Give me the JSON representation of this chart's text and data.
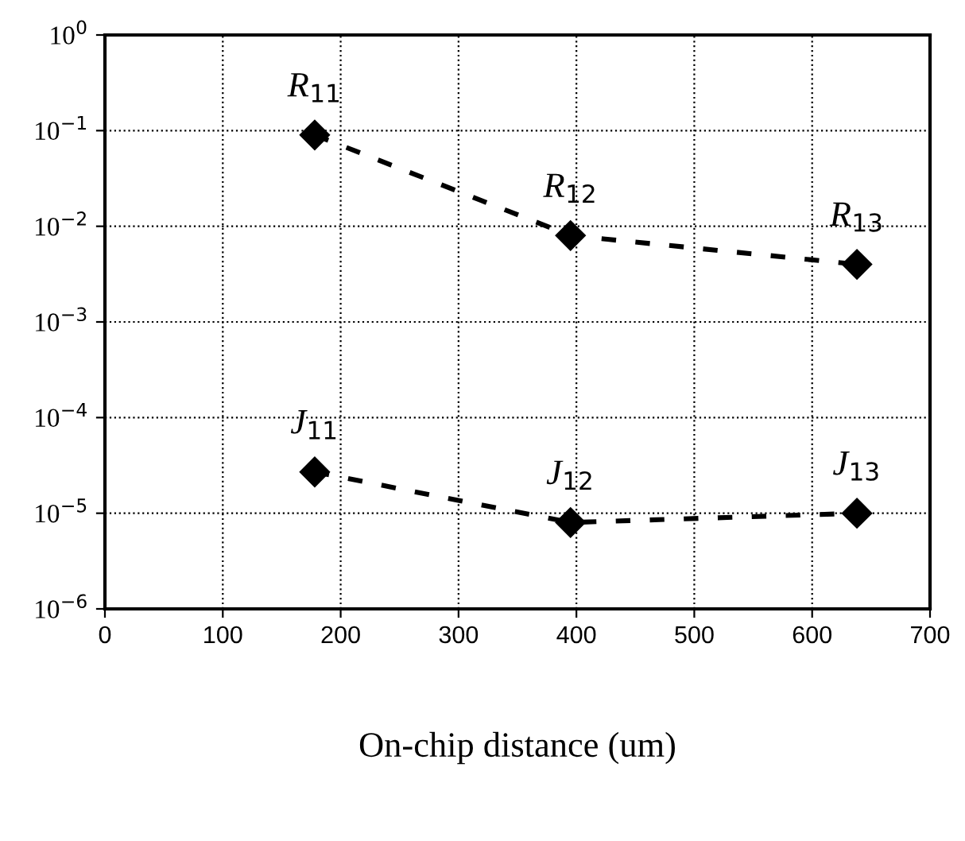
{
  "chart_data": {
    "type": "line",
    "xlabel": "On-chip distance (um)",
    "x": [
      178,
      395,
      638
    ],
    "series": [
      {
        "color": "#000000",
        "values": [
          0.09,
          0.008,
          0.004
        ]
      },
      {
        "color": "#000000",
        "values": [
          2.7e-05,
          8e-06,
          1e-05
        ]
      }
    ],
    "log": "y",
    "marker": "diamond",
    "line_style": "dashed",
    "grid": true,
    "legend": false,
    "xlim": [
      0,
      700
    ],
    "xticks": [
      0,
      100,
      200,
      300,
      400,
      500,
      600,
      700
    ],
    "ylim": [
      1e-06,
      1
    ],
    "yticks": [
      {
        "value": 1e-06,
        "label": "10$^{−6}$"
      },
      {
        "value": 1e-05,
        "label": "10$^{−5}$"
      },
      {
        "value": 0.0001,
        "label": "10$^{−4}$"
      },
      {
        "value": 0.001,
        "label": "10$^{−3}$"
      },
      {
        "value": 0.01,
        "label": "10$^{−2}$"
      },
      {
        "value": 0.1,
        "label": "10$^{−1}$"
      },
      {
        "value": 1,
        "label": "10$^{0}$"
      }
    ],
    "annotations": [
      {
        "text": "R$_{11}$",
        "x": 178,
        "y": 0.09
      },
      {
        "text": "R$_{12}$",
        "x": 395,
        "y": 0.008
      },
      {
        "text": "R$_{13}$",
        "x": 638,
        "y": 0.004
      },
      {
        "text": "J$_{11}$",
        "x": 178,
        "y": 2.7e-05
      },
      {
        "text": "J$_{12}$",
        "x": 395,
        "y": 8e-06
      },
      {
        "text": "J$_{13}$",
        "x": 638,
        "y": 1e-05
      }
    ]
  }
}
